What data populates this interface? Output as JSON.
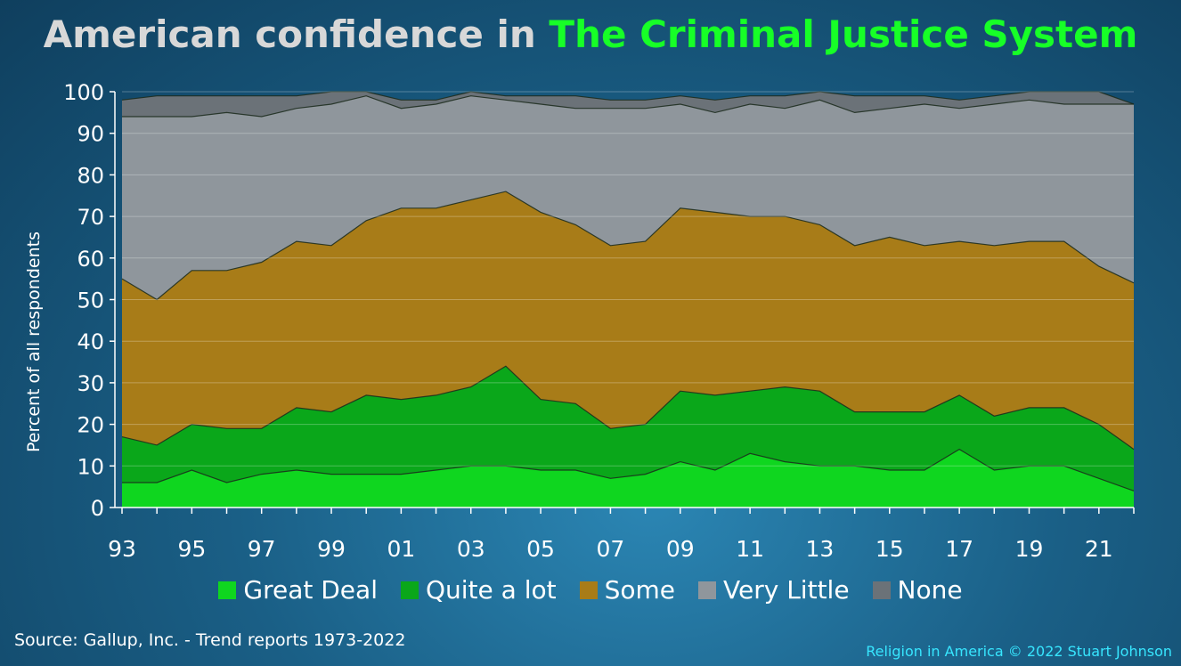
{
  "title": {
    "prefix": "American confidence in ",
    "highlight": "The Criminal Justice System"
  },
  "ylabel": "Percent of all respondents",
  "source": "Source: Gallup, Inc. - Trend reports 1973-2022",
  "credit": "Religion in America © 2022 Stuart Johnson",
  "colors": {
    "great_deal": "#0fd61f",
    "quite_a_lot": "#0aa71a",
    "some": "#a87c18",
    "very_little": "#8f969c",
    "none": "#6b7278",
    "gridline": "#7fa0b5"
  },
  "chart_data": {
    "type": "area",
    "stacked": true,
    "x": [
      1993,
      1994,
      1995,
      1996,
      1997,
      1998,
      1999,
      2000,
      2001,
      2002,
      2003,
      2004,
      2005,
      2006,
      2007,
      2008,
      2009,
      2010,
      2011,
      2012,
      2013,
      2014,
      2015,
      2016,
      2017,
      2018,
      2019,
      2020,
      2021,
      2022
    ],
    "x_tick_labels": [
      "93",
      "95",
      "97",
      "99",
      "01",
      "03",
      "05",
      "07",
      "09",
      "11",
      "13",
      "15",
      "17",
      "19",
      "21"
    ],
    "x_tick_years": [
      1993,
      1995,
      1997,
      1999,
      2001,
      2003,
      2005,
      2007,
      2009,
      2011,
      2013,
      2015,
      2017,
      2019,
      2021
    ],
    "ylim": [
      0,
      100
    ],
    "y_ticks": [
      0,
      10,
      20,
      30,
      40,
      50,
      60,
      70,
      80,
      90,
      100
    ],
    "grid": true,
    "legend_placement": "bottom",
    "series": [
      {
        "name": "Great Deal",
        "key": "great_deal",
        "cumulative": [
          6,
          6,
          9,
          6,
          8,
          9,
          8,
          8,
          8,
          9,
          10,
          10,
          9,
          9,
          7,
          8,
          11,
          9,
          13,
          11,
          10,
          10,
          9,
          9,
          14,
          9,
          10,
          10,
          7,
          4
        ]
      },
      {
        "name": "Quite a lot",
        "key": "quite_a_lot",
        "cumulative": [
          17,
          15,
          20,
          19,
          19,
          24,
          23,
          27,
          26,
          27,
          29,
          34,
          26,
          25,
          19,
          20,
          28,
          27,
          28,
          29,
          28,
          23,
          23,
          23,
          27,
          22,
          24,
          24,
          20,
          14
        ]
      },
      {
        "name": "Some",
        "key": "some",
        "cumulative": [
          55,
          50,
          57,
          57,
          59,
          64,
          63,
          69,
          72,
          72,
          74,
          76,
          71,
          68,
          63,
          64,
          72,
          71,
          70,
          70,
          68,
          63,
          65,
          63,
          64,
          63,
          64,
          64,
          58,
          54
        ]
      },
      {
        "name": "Very Little",
        "key": "very_little",
        "cumulative": [
          94,
          94,
          94,
          95,
          94,
          96,
          97,
          99,
          96,
          97,
          99,
          98,
          97,
          96,
          96,
          96,
          97,
          95,
          97,
          96,
          98,
          95,
          96,
          97,
          96,
          97,
          98,
          97,
          97,
          97
        ]
      },
      {
        "name": "None",
        "key": "none",
        "cumulative": [
          98,
          99,
          99,
          99,
          99,
          99,
          100,
          100,
          98,
          98,
          100,
          99,
          99,
          99,
          98,
          98,
          99,
          98,
          99,
          99,
          100,
          99,
          99,
          99,
          98,
          99,
          100,
          100,
          100,
          97
        ]
      }
    ]
  }
}
